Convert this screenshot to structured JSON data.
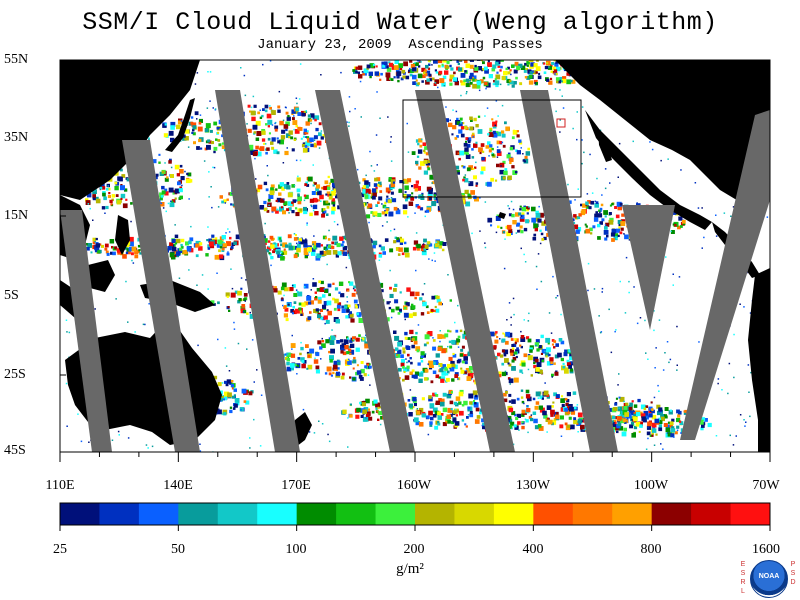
{
  "title": "SSM/I Cloud Liquid Water (Weng algorithm)",
  "subtitle": "January 23, 2009  Ascending Passes",
  "lat_labels": [
    "55N",
    "35N",
    "15N",
    "5S",
    "25S",
    "45S"
  ],
  "lon_labels": [
    "110E",
    "140E",
    "170E",
    "160W",
    "130W",
    "100W",
    "70W"
  ],
  "colorbar": {
    "tick_labels": [
      "25",
      "50",
      "100",
      "200",
      "400",
      "800",
      "1600"
    ],
    "units": "g/m²",
    "colors": [
      "#00107a",
      "#0030c0",
      "#0a60ff",
      "#089c9c",
      "#12c8c8",
      "#18ffff",
      "#008c00",
      "#12c012",
      "#3cf03c",
      "#b4b400",
      "#d8d800",
      "#ffff00",
      "#ff5000",
      "#ff7800",
      "#ffa000",
      "#8c0000",
      "#c80000",
      "#ff1010"
    ]
  },
  "colors": {
    "land": "#000000",
    "no_data_swath_gap": "#686868",
    "box_outline": "#000000",
    "box_small_marker": "#d02020"
  },
  "logo": {
    "left_text": "ESRL",
    "right_text": "PSD",
    "center_text": "NOAA"
  }
}
